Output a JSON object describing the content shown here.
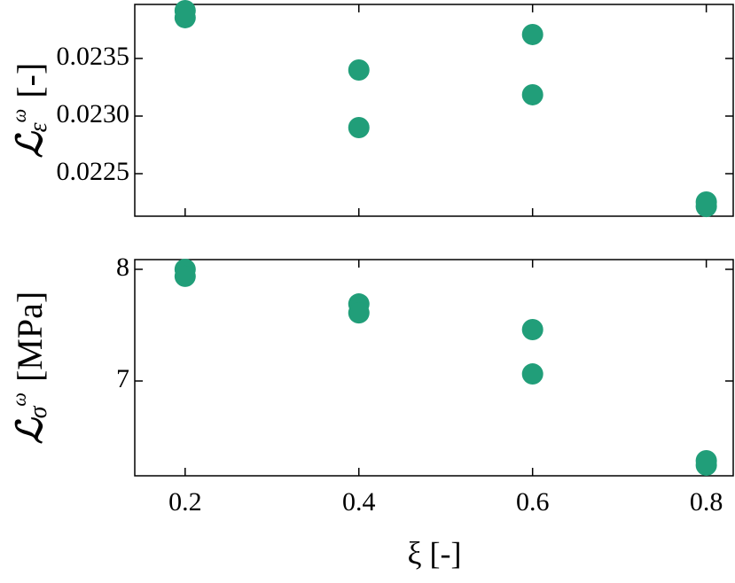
{
  "chart_data": [
    {
      "type": "scatter",
      "ylabel": {
        "main": "ℒ",
        "sub": "ε",
        "sup": "ω",
        "unit": "[-]"
      },
      "x": [
        0.2,
        0.2,
        0.4,
        0.4,
        0.6,
        0.6,
        0.8,
        0.8
      ],
      "values": [
        0.023915,
        0.023854,
        0.0234,
        0.0229,
        0.023708,
        0.023185,
        0.022254,
        0.022215
      ],
      "color": "#219e79",
      "xlim": [
        0.142,
        0.831
      ],
      "xticks": [
        0.2,
        0.4,
        0.6,
        0.8
      ],
      "ylim": [
        0.022131,
        0.023969
      ],
      "yticks": [
        0.0225,
        {
          "value": 0.023,
          "label": "0.0230"
        },
        0.0235
      ]
    },
    {
      "type": "scatter",
      "ylabel": {
        "main": "ℒ",
        "sub": "σ",
        "sup": "ω",
        "unit": "[MPa]"
      },
      "xlabel": "ξ  [-]",
      "x": [
        0.2,
        0.2,
        0.4,
        0.4,
        0.6,
        0.6,
        0.8,
        0.8
      ],
      "values": [
        8.0,
        7.937,
        7.69,
        7.61,
        7.46,
        7.063,
        6.286,
        6.246
      ],
      "color": "#219e79",
      "xlim": [
        0.142,
        0.831
      ],
      "xticks": [
        0.2,
        0.4,
        0.6,
        0.8
      ],
      "ylim": [
        6.151,
        8.087
      ],
      "yticks": [
        7,
        8
      ]
    }
  ]
}
